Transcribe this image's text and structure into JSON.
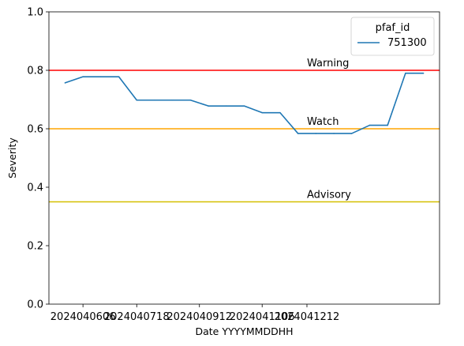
{
  "chart_data": {
    "type": "line",
    "xlabel": "Date YYYYMMDDHH",
    "ylabel": "Severity",
    "ylim": [
      0,
      1
    ],
    "y_ticks": [
      0.0,
      0.2,
      0.4,
      0.6,
      0.8,
      1.0
    ],
    "y_tick_labels": [
      "0.0",
      "0.2",
      "0.4",
      "0.6",
      "0.8",
      "1.0"
    ],
    "x_tick_labels": [
      "2024040606",
      "2024040718",
      "2024040912",
      "2024041106",
      "2024041212"
    ],
    "grid": false,
    "legend": {
      "title": "pfaf_id",
      "placement": "top-right",
      "entries": [
        {
          "name": "751300",
          "color": "#1f77b4"
        }
      ]
    },
    "series": [
      {
        "name": "751300",
        "color": "#1f77b4",
        "points": [
          [
            2024040518,
            0.757
          ],
          [
            2024040606,
            0.778
          ],
          [
            2024040618,
            0.778
          ],
          [
            2024040706,
            0.778
          ],
          [
            2024040718,
            0.698
          ],
          [
            2024040806,
            0.698
          ],
          [
            2024040818,
            0.698
          ],
          [
            2024040906,
            0.698
          ],
          [
            2024040918,
            0.678
          ],
          [
            2024041006,
            0.678
          ],
          [
            2024041018,
            0.678
          ],
          [
            2024041106,
            0.655
          ],
          [
            2024041118,
            0.655
          ],
          [
            2024041206,
            0.584
          ],
          [
            2024041218,
            0.584
          ],
          [
            2024041306,
            0.584
          ],
          [
            2024041318,
            0.584
          ],
          [
            2024041406,
            0.612
          ],
          [
            2024041418,
            0.612
          ],
          [
            2024041506,
            0.79
          ],
          [
            2024041518,
            0.79
          ]
        ]
      }
    ],
    "thresholds": [
      {
        "label": "Warning",
        "value": 0.8,
        "color": "#ff0000"
      },
      {
        "label": "Watch",
        "value": 0.6,
        "color": "#ffa500"
      },
      {
        "label": "Advisory",
        "value": 0.35,
        "color": "#d4c000"
      }
    ]
  }
}
